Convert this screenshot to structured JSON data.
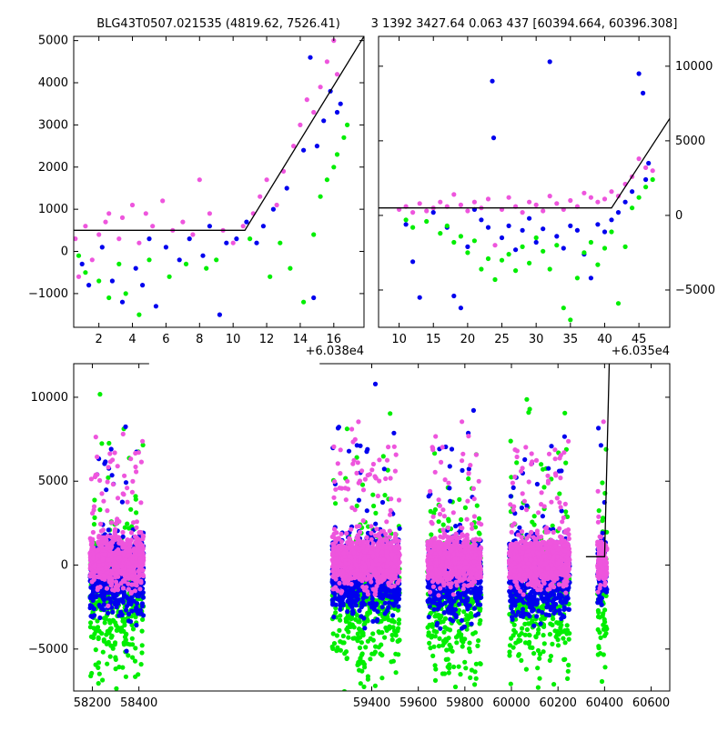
{
  "titles": {
    "left": "BLG43T0507.021535 (4819.62, 7526.41)",
    "right": "3 1392 3427.64 0.063 437 [60394.664, 60396.308]"
  },
  "colors": {
    "series_a": "#ee55dd",
    "series_b": "#0000ee",
    "series_c": "#00ee00",
    "model": "#000000"
  },
  "chart_data": [
    {
      "id": "top_left",
      "type": "scatter",
      "title": "BLG43T0507.021535 (4819.62, 7526.41)",
      "x_offset_label": "+6.038e4",
      "xlim": [
        0.5,
        17.8
      ],
      "ylim": [
        -1800,
        5100
      ],
      "x_ticks": [
        2,
        4,
        6,
        8,
        10,
        12,
        14,
        16
      ],
      "y_ticks": [
        -1000,
        0,
        1000,
        2000,
        3000,
        4000,
        5000
      ],
      "y_tick_labels": [
        "−1000",
        "0",
        "1000",
        "2000",
        "3000",
        "4000",
        "5000"
      ],
      "series": [
        {
          "color_key": "series_a",
          "points": [
            [
              0.6,
              300
            ],
            [
              0.8,
              -600
            ],
            [
              1.2,
              600
            ],
            [
              1.6,
              -200
            ],
            [
              2.0,
              400
            ],
            [
              2.4,
              700
            ],
            [
              2.6,
              900
            ],
            [
              3.2,
              300
            ],
            [
              3.4,
              800
            ],
            [
              4.0,
              1100
            ],
            [
              4.4,
              200
            ],
            [
              4.8,
              900
            ],
            [
              5.2,
              600
            ],
            [
              5.8,
              1200
            ],
            [
              6.4,
              500
            ],
            [
              7.0,
              700
            ],
            [
              7.6,
              400
            ],
            [
              8.0,
              1700
            ],
            [
              8.6,
              900
            ],
            [
              9.4,
              500
            ],
            [
              10.0,
              200
            ],
            [
              10.6,
              600
            ],
            [
              11.2,
              900
            ],
            [
              11.6,
              1300
            ],
            [
              12.0,
              1700
            ],
            [
              12.6,
              1100
            ],
            [
              13.0,
              1900
            ],
            [
              13.6,
              2500
            ],
            [
              14.0,
              3000
            ],
            [
              14.4,
              3600
            ],
            [
              14.8,
              3300
            ],
            [
              15.2,
              3900
            ],
            [
              15.6,
              4500
            ],
            [
              16.0,
              5000
            ],
            [
              16.2,
              4200
            ]
          ]
        },
        {
          "color_key": "series_b",
          "points": [
            [
              1.0,
              -300
            ],
            [
              1.4,
              -800
            ],
            [
              2.2,
              100
            ],
            [
              2.8,
              -700
            ],
            [
              3.4,
              -1200
            ],
            [
              4.2,
              -400
            ],
            [
              4.6,
              -800
            ],
            [
              5.0,
              300
            ],
            [
              5.4,
              -1300
            ],
            [
              6.0,
              100
            ],
            [
              6.8,
              -200
            ],
            [
              7.4,
              300
            ],
            [
              8.2,
              -100
            ],
            [
              8.6,
              600
            ],
            [
              9.2,
              -1500
            ],
            [
              9.6,
              200
            ],
            [
              10.2,
              300
            ],
            [
              10.8,
              700
            ],
            [
              11.4,
              200
            ],
            [
              11.8,
              600
            ],
            [
              12.4,
              1000
            ],
            [
              13.2,
              1500
            ],
            [
              14.2,
              2400
            ],
            [
              14.6,
              4600
            ],
            [
              14.8,
              -1100
            ],
            [
              15.0,
              2500
            ],
            [
              15.4,
              3100
            ],
            [
              15.8,
              3800
            ],
            [
              16.2,
              3300
            ],
            [
              16.4,
              3500
            ]
          ]
        },
        {
          "color_key": "series_c",
          "points": [
            [
              0.8,
              -100
            ],
            [
              1.2,
              -500
            ],
            [
              2.0,
              -700
            ],
            [
              2.6,
              -1100
            ],
            [
              3.2,
              -300
            ],
            [
              3.6,
              -1000
            ],
            [
              4.4,
              -1500
            ],
            [
              5.0,
              -200
            ],
            [
              6.2,
              -600
            ],
            [
              7.2,
              -300
            ],
            [
              8.4,
              -400
            ],
            [
              9.0,
              -200
            ],
            [
              11.0,
              300
            ],
            [
              12.2,
              -600
            ],
            [
              12.8,
              200
            ],
            [
              13.4,
              -400
            ],
            [
              14.2,
              -1200
            ],
            [
              14.8,
              400
            ],
            [
              15.2,
              1300
            ],
            [
              15.6,
              1700
            ],
            [
              16.0,
              2000
            ],
            [
              16.2,
              2300
            ],
            [
              16.6,
              2700
            ],
            [
              16.8,
              3000
            ]
          ]
        }
      ],
      "model": [
        [
          0.5,
          500
        ],
        [
          10.7,
          500
        ],
        [
          17.8,
          5100
        ]
      ]
    },
    {
      "id": "top_right",
      "type": "scatter",
      "x_offset_label": "+6.035e4",
      "xlim": [
        7,
        49.5
      ],
      "ylim": [
        -7500,
        12000
      ],
      "x_ticks": [
        10,
        15,
        20,
        25,
        30,
        35,
        40,
        45
      ],
      "y_ticks": [
        -5000,
        0,
        5000,
        10000
      ],
      "y_tick_labels": [
        "−5000",
        "0",
        "5000",
        "10000"
      ],
      "series": [
        {
          "color_key": "series_a",
          "points": [
            [
              10,
              400
            ],
            [
              11,
              600
            ],
            [
              12,
              200
            ],
            [
              13,
              800
            ],
            [
              14,
              300
            ],
            [
              15,
              500
            ],
            [
              16,
              900
            ],
            [
              17,
              600
            ],
            [
              18,
              1400
            ],
            [
              19,
              700
            ],
            [
              20,
              300
            ],
            [
              21,
              900
            ],
            [
              22,
              500
            ],
            [
              23,
              1100
            ],
            [
              24,
              -2000
            ],
            [
              25,
              400
            ],
            [
              26,
              1200
            ],
            [
              27,
              600
            ],
            [
              28,
              200
            ],
            [
              29,
              900
            ],
            [
              30,
              700
            ],
            [
              31,
              300
            ],
            [
              32,
              1300
            ],
            [
              33,
              800
            ],
            [
              34,
              400
            ],
            [
              35,
              1000
            ],
            [
              36,
              600
            ],
            [
              37,
              1500
            ],
            [
              38,
              1200
            ],
            [
              39,
              900
            ],
            [
              40,
              1100
            ],
            [
              41,
              1600
            ],
            [
              42,
              1300
            ],
            [
              43,
              2100
            ],
            [
              44,
              2600
            ],
            [
              45,
              3800
            ],
            [
              46,
              3200
            ],
            [
              47,
              3000
            ]
          ]
        },
        {
          "color_key": "series_b",
          "points": [
            [
              11,
              -600
            ],
            [
              12,
              -3100
            ],
            [
              13,
              -5500
            ],
            [
              15,
              200
            ],
            [
              17,
              -800
            ],
            [
              18,
              -5400
            ],
            [
              19,
              -6200
            ],
            [
              20,
              -2100
            ],
            [
              21,
              400
            ],
            [
              22,
              -300
            ],
            [
              23,
              -800
            ],
            [
              23.6,
              9000
            ],
            [
              23.8,
              5200
            ],
            [
              25,
              -1500
            ],
            [
              26,
              -700
            ],
            [
              27,
              -2300
            ],
            [
              28,
              -1000
            ],
            [
              29,
              -200
            ],
            [
              30,
              -1800
            ],
            [
              31,
              -900
            ],
            [
              32,
              10300
            ],
            [
              33,
              -1400
            ],
            [
              34,
              -2200
            ],
            [
              35,
              -700
            ],
            [
              36,
              -1000
            ],
            [
              37,
              -2600
            ],
            [
              38,
              -4200
            ],
            [
              39,
              -600
            ],
            [
              40,
              -1100
            ],
            [
              41,
              -300
            ],
            [
              42,
              200
            ],
            [
              43,
              900
            ],
            [
              44,
              1600
            ],
            [
              45,
              9500
            ],
            [
              45.6,
              8200
            ],
            [
              46,
              2400
            ],
            [
              46.4,
              3500
            ]
          ]
        },
        {
          "color_key": "series_c",
          "points": [
            [
              11,
              -300
            ],
            [
              12,
              -800
            ],
            [
              14,
              -400
            ],
            [
              16,
              -1200
            ],
            [
              17,
              -700
            ],
            [
              18,
              -1800
            ],
            [
              19,
              -1400
            ],
            [
              20,
              -2500
            ],
            [
              21,
              -1700
            ],
            [
              22,
              -3600
            ],
            [
              23,
              -2900
            ],
            [
              24,
              -4300
            ],
            [
              25,
              -3000
            ],
            [
              26,
              -2600
            ],
            [
              27,
              -3700
            ],
            [
              28,
              -2100
            ],
            [
              29,
              -3200
            ],
            [
              30,
              -1500
            ],
            [
              31,
              -2400
            ],
            [
              32,
              -3600
            ],
            [
              33,
              -2000
            ],
            [
              34,
              -6200
            ],
            [
              35,
              -7000
            ],
            [
              36,
              -4200
            ],
            [
              37,
              -2500
            ],
            [
              38,
              -1800
            ],
            [
              39,
              -3300
            ],
            [
              40,
              -2200
            ],
            [
              41,
              -1100
            ],
            [
              42,
              -5900
            ],
            [
              43,
              -2100
            ],
            [
              44,
              500
            ],
            [
              45,
              1200
            ],
            [
              46,
              1900
            ],
            [
              47,
              2400
            ]
          ]
        }
      ],
      "model": [
        [
          7,
          500
        ],
        [
          41,
          500
        ],
        [
          49.5,
          6500
        ]
      ]
    },
    {
      "id": "bottom",
      "type": "scatter",
      "xlim": [
        58120,
        60680
      ],
      "ylim": [
        -7500,
        12000
      ],
      "x_ticks": [
        58200,
        58400,
        59400,
        59600,
        59800,
        60000,
        60200,
        60400,
        60600
      ],
      "y_ticks": [
        -5000,
        0,
        5000,
        10000
      ],
      "y_tick_labels": [
        "−5000",
        "0",
        "5000",
        "10000"
      ],
      "axis_break": {
        "left_end": 58440,
        "right_start": 59180
      },
      "seasons": [
        [
          58190,
          58420
        ],
        [
          59230,
          59520
        ],
        [
          59640,
          59870
        ],
        [
          59990,
          60250
        ],
        [
          60370,
          60410
        ]
      ],
      "model": [
        [
          60320,
          500
        ],
        [
          60400,
          500
        ],
        [
          60420,
          12000
        ]
      ]
    }
  ]
}
